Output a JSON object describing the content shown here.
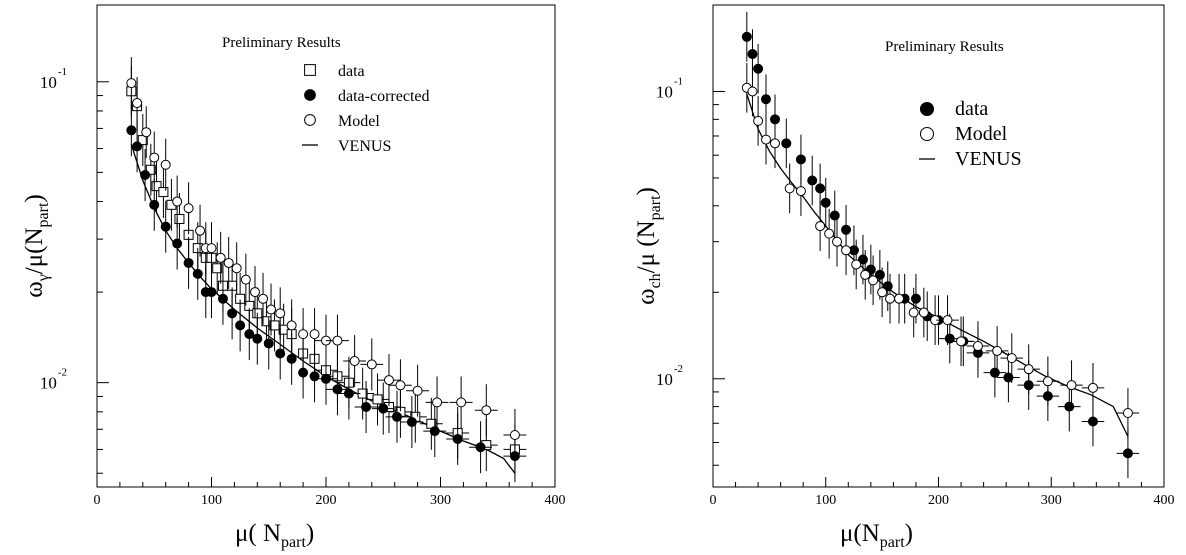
{
  "chart_data": [
    {
      "type": "scatter",
      "yscale": "log",
      "xlim": [
        0,
        400
      ],
      "ylim": [
        0.0045,
        0.18
      ],
      "xticks": [
        0,
        100,
        200,
        300,
        400
      ],
      "xtick_labels": [
        "0",
        "100",
        "200",
        "300",
        "400"
      ],
      "ytick_labels": [
        {
          "value": 0.1,
          "base": "10",
          "exp": "-1"
        },
        {
          "value": 0.01,
          "base": "10",
          "exp": "-2"
        }
      ],
      "annotation": "Preliminary Results",
      "xlabel": {
        "main": "μ( N",
        "sub": "part",
        "tail": ")"
      },
      "ylabel": {
        "main": "ω",
        "sub1": "γ",
        "mid": "/μ(N",
        "sub2": "part",
        "tail": ")"
      },
      "legend": {
        "position": "top-right",
        "entries": [
          {
            "label": "data",
            "marker": "open-square"
          },
          {
            "label": "data-corrected",
            "marker": "filled-circle"
          },
          {
            "label": "Model",
            "marker": "open-circle"
          },
          {
            "label": "VENUS",
            "marker": "line"
          }
        ]
      },
      "series": [
        {
          "name": "data",
          "marker": "open-square",
          "x": [
            30,
            35,
            40,
            47,
            52,
            58,
            65,
            72,
            80,
            88,
            95,
            100,
            105,
            110,
            118,
            125,
            133,
            140,
            148,
            155,
            163,
            170,
            180,
            190,
            200,
            210,
            220,
            232,
            245,
            255,
            265,
            278,
            292,
            315,
            340,
            365
          ],
          "y": [
            0.093,
            0.083,
            0.064,
            0.051,
            0.045,
            0.043,
            0.039,
            0.035,
            0.031,
            0.028,
            0.026,
            0.026,
            0.024,
            0.021,
            0.021,
            0.019,
            0.018,
            0.017,
            0.016,
            0.0155,
            0.015,
            0.0145,
            0.0125,
            0.012,
            0.011,
            0.0105,
            0.01,
            0.0092,
            0.0088,
            0.0083,
            0.008,
            0.0077,
            0.0073,
            0.0068,
            0.0062,
            0.006
          ]
        },
        {
          "name": "data-corrected",
          "marker": "filled-circle",
          "x": [
            30,
            35,
            42,
            50,
            60,
            70,
            80,
            88,
            95,
            100,
            110,
            118,
            125,
            133,
            140,
            150,
            160,
            170,
            180,
            190,
            200,
            210,
            220,
            235,
            250,
            262,
            275,
            295,
            315,
            335,
            365
          ],
          "y": [
            0.069,
            0.061,
            0.049,
            0.039,
            0.033,
            0.029,
            0.025,
            0.023,
            0.02,
            0.02,
            0.019,
            0.017,
            0.0155,
            0.0145,
            0.014,
            0.0135,
            0.0125,
            0.012,
            0.0108,
            0.0105,
            0.0103,
            0.0095,
            0.0092,
            0.0083,
            0.0082,
            0.0077,
            0.0074,
            0.0069,
            0.0065,
            0.0061,
            0.0057
          ]
        },
        {
          "name": "Model",
          "marker": "open-circle",
          "x": [
            30,
            35,
            43,
            50,
            60,
            70,
            80,
            90,
            95,
            100,
            108,
            115,
            122,
            130,
            138,
            145,
            152,
            160,
            170,
            180,
            190,
            200,
            210,
            225,
            240,
            255,
            265,
            280,
            297,
            318,
            340,
            365
          ],
          "y": [
            0.099,
            0.085,
            0.068,
            0.056,
            0.053,
            0.04,
            0.038,
            0.032,
            0.028,
            0.028,
            0.026,
            0.025,
            0.024,
            0.022,
            0.02,
            0.019,
            0.0175,
            0.017,
            0.0155,
            0.0145,
            0.0145,
            0.0138,
            0.0138,
            0.0118,
            0.0115,
            0.0102,
            0.0098,
            0.0094,
            0.0086,
            0.0086,
            0.0081,
            0.0067
          ]
        }
      ],
      "venus_curve": {
        "name": "VENUS",
        "x": [
          30,
          40,
          50,
          60,
          70,
          80,
          90,
          100,
          120,
          140,
          160,
          180,
          200,
          220,
          240,
          260,
          280,
          300,
          320,
          340,
          355,
          365
        ],
        "y": [
          0.062,
          0.047,
          0.038,
          0.032,
          0.028,
          0.025,
          0.0225,
          0.0205,
          0.0175,
          0.0152,
          0.0134,
          0.0118,
          0.0105,
          0.0095,
          0.0087,
          0.0081,
          0.0075,
          0.0069,
          0.0064,
          0.006,
          0.0056,
          0.005
        ]
      }
    },
    {
      "type": "scatter",
      "yscale": "log",
      "xlim": [
        0,
        400
      ],
      "ylim": [
        0.0042,
        0.2
      ],
      "xticks": [
        0,
        100,
        200,
        300,
        400
      ],
      "xtick_labels": [
        "0",
        "100",
        "200",
        "300",
        "400"
      ],
      "ytick_labels": [
        {
          "value": 0.1,
          "base": "10",
          "exp": "-1"
        },
        {
          "value": 0.01,
          "base": "10",
          "exp": "-2"
        }
      ],
      "annotation": "Preliminary Results",
      "xlabel": {
        "main": "μ(N",
        "sub": "part",
        "tail": ")"
      },
      "ylabel": {
        "main": "ω",
        "sub1": "ch",
        "mid": "/μ (N",
        "sub2": "part",
        "tail": ")"
      },
      "legend": {
        "position": "top-right",
        "entries": [
          {
            "label": "data",
            "marker": "filled-circle"
          },
          {
            "label": "Model",
            "marker": "open-circle"
          },
          {
            "label": "VENUS",
            "marker": "line"
          }
        ]
      },
      "series": [
        {
          "name": "data",
          "marker": "filled-circle",
          "x": [
            30,
            35,
            40,
            47,
            55,
            65,
            78,
            88,
            95,
            100,
            108,
            118,
            125,
            133,
            140,
            148,
            155,
            170,
            180,
            190,
            200,
            210,
            222,
            235,
            250,
            262,
            280,
            297,
            316,
            337,
            368
          ],
          "y": [
            0.155,
            0.135,
            0.12,
            0.094,
            0.08,
            0.066,
            0.058,
            0.049,
            0.046,
            0.041,
            0.037,
            0.033,
            0.028,
            0.026,
            0.024,
            0.023,
            0.021,
            0.019,
            0.019,
            0.0165,
            0.016,
            0.0138,
            0.0135,
            0.0123,
            0.0105,
            0.0101,
            0.0095,
            0.0087,
            0.008,
            0.0071,
            0.0055
          ]
        },
        {
          "name": "Model",
          "marker": "open-circle",
          "x": [
            30,
            35,
            40,
            47,
            55,
            68,
            78,
            95,
            103,
            110,
            118,
            127,
            135,
            142,
            150,
            157,
            165,
            178,
            187,
            197,
            208,
            220,
            235,
            252,
            265,
            280,
            297,
            318,
            337,
            368
          ],
          "y": [
            0.103,
            0.1,
            0.079,
            0.068,
            0.066,
            0.046,
            0.045,
            0.034,
            0.032,
            0.03,
            0.028,
            0.025,
            0.023,
            0.022,
            0.02,
            0.019,
            0.019,
            0.017,
            0.017,
            0.016,
            0.016,
            0.0135,
            0.013,
            0.0125,
            0.0118,
            0.0108,
            0.0098,
            0.0095,
            0.0093,
            0.0076
          ]
        }
      ],
      "venus_curve": {
        "name": "VENUS",
        "x": [
          30,
          40,
          50,
          60,
          70,
          80,
          90,
          100,
          120,
          140,
          160,
          180,
          200,
          220,
          240,
          260,
          280,
          295,
          315,
          335,
          355,
          368
        ],
        "y": [
          0.098,
          0.074,
          0.062,
          0.054,
          0.048,
          0.043,
          0.038,
          0.034,
          0.027,
          0.023,
          0.02,
          0.0178,
          0.0163,
          0.0148,
          0.0135,
          0.0122,
          0.011,
          0.0102,
          0.0094,
          0.0088,
          0.008,
          0.0063
        ]
      }
    }
  ]
}
